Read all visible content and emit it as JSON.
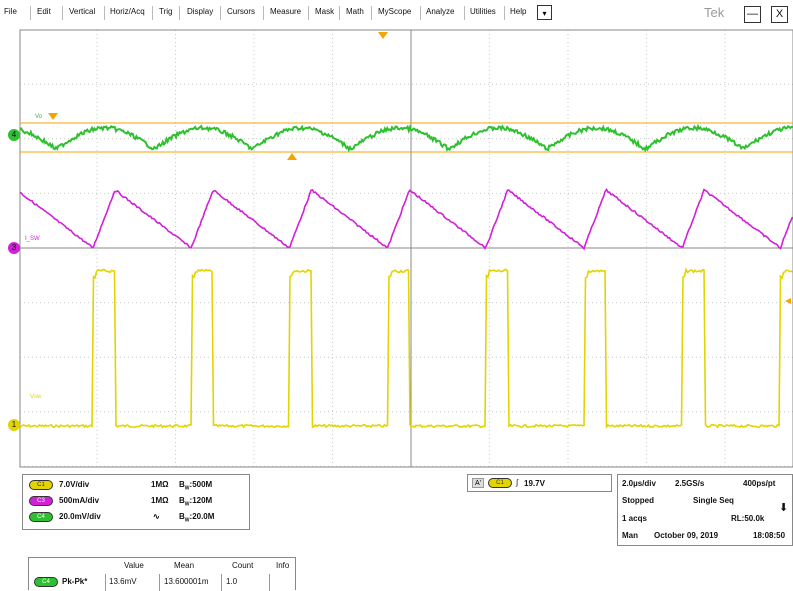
{
  "menu": {
    "items": [
      "File",
      "Edit",
      "Vertical",
      "Horiz/Acq",
      "Trig",
      "Display",
      "Cursors",
      "Measure",
      "Mask",
      "Math",
      "MyScope",
      "Analyze",
      "Utilities",
      "Help"
    ],
    "dropdown_glyph": "▾",
    "brand": "Tek",
    "minimize_glyph": "—",
    "close_glyph": "X"
  },
  "waveform_labels": {
    "ch4_marker": "4",
    "ch3_marker": "3",
    "ch1_marker": "1",
    "ch4_label": "Vo",
    "ch3_label": "I_SW",
    "ch1_label": "Vsw"
  },
  "channels": [
    {
      "badge": "C1",
      "color": "#e2d400",
      "scale": "7.0V/div",
      "coupling": "1MΩ",
      "bw": "500M",
      "bw_prefix": "B",
      "bw_sub": "W"
    },
    {
      "badge": "C3",
      "color": "#d21fd8",
      "scale": "500mA/div",
      "coupling": "1MΩ",
      "bw": "120M",
      "bw_prefix": "B",
      "bw_sub": "W"
    },
    {
      "badge": "C4",
      "color": "#2ec02e",
      "scale": "20.0mV/div",
      "coupling": "∿",
      "bw": "20.0M",
      "bw_prefix": "B",
      "bw_sub": "W"
    }
  ],
  "trigger": {
    "mode": "A'",
    "channel": "C1",
    "slope": "∫",
    "level": "19.7V"
  },
  "acquisition": {
    "timebase": "2.0µs/div",
    "sample_rate": "2.5GS/s",
    "points": "400ps/pt",
    "state": "Stopped",
    "seq_mode": "Single Seq",
    "acqs": "1 acqs",
    "record_length": "RL:50.0k",
    "trigger_mode": "Man",
    "date": "October 09, 2019",
    "time": "18:08:50",
    "arrow_glyph": "⬇"
  },
  "measurements": {
    "headers": [
      "Value",
      "Mean",
      "Count",
      "Info"
    ],
    "rows": [
      {
        "badge": "C4",
        "color": "#2ec02e",
        "name": "Pk-Pk*",
        "value": "13.6mV",
        "mean": "13.600001m",
        "count": "1.0",
        "info": ""
      }
    ]
  },
  "colors": {
    "ch1": "#e2d400",
    "ch3": "#d21fd8",
    "ch4": "#2ec02e",
    "trigger": "#f5a400",
    "grid": "#c9c9c9"
  }
}
